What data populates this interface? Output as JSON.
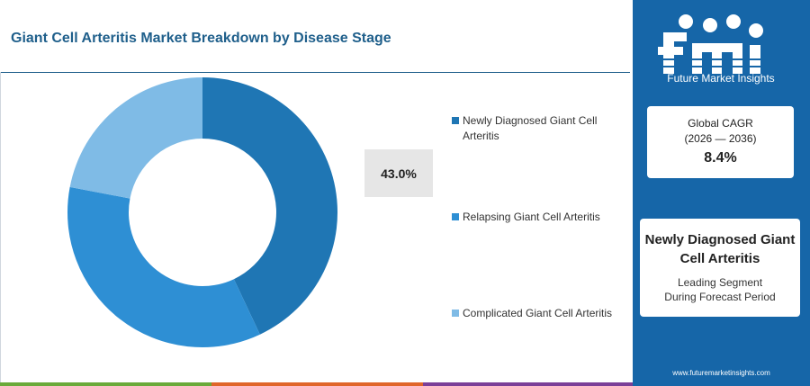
{
  "title": "Giant Cell Arteritis Market Breakdown by Disease Stage",
  "chart_data": {
    "type": "pie",
    "variant": "donut",
    "categories": [
      "Newly Diagnosed Giant Cell Arteritis",
      "Relapsing Giant Cell Arteritis",
      "Complicated Giant Cell Arteritis"
    ],
    "values": [
      43.0,
      35.0,
      22.0
    ],
    "colors": [
      "#1f76b4",
      "#2e8fd4",
      "#7fbbe6"
    ],
    "callout_label": "43.0%",
    "legend_position": "right"
  },
  "side_panel": {
    "brand_name": "Future Market Insights",
    "cagr_title": "Global CAGR",
    "cagr_period": "(2026 — 2036)",
    "cagr_value": "8.4%",
    "leading_segment": "Newly Diagnosed Giant Cell Arteritis",
    "leading_caption_1": "Leading Segment",
    "leading_caption_2": "During Forecast Period",
    "website": "www.futuremarketinsights.com",
    "panel_color": "#1666a8"
  },
  "footer_colors": [
    "#6aaa3a",
    "#e0662a",
    "#7b3f98",
    "#1666a8"
  ]
}
